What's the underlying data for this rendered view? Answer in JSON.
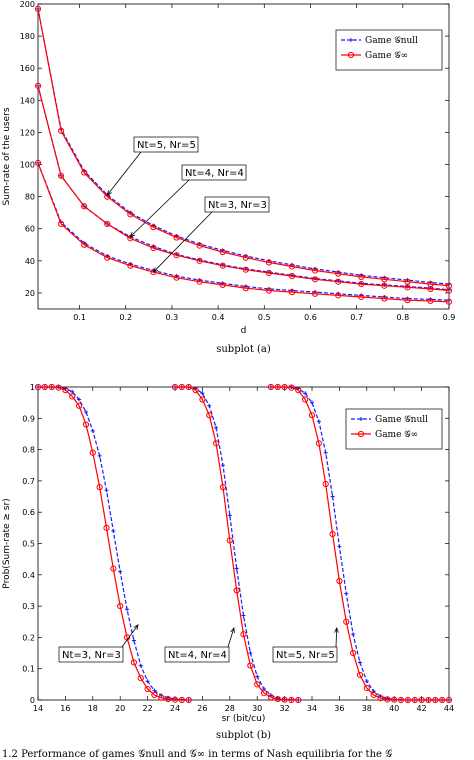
{
  "chart_data": [
    {
      "type": "line",
      "caption": "subplot (a)",
      "xlabel": "d",
      "ylabel": "Sum-rate of the users",
      "xlim": [
        0.01,
        0.9
      ],
      "ylim": [
        10,
        200
      ],
      "xticks": [
        "0.1",
        "0.2",
        "0.3",
        "0.4",
        "0.5",
        "0.6",
        "0.7",
        "0.8",
        "0.9"
      ],
      "yticks": [
        "20",
        "40",
        "60",
        "80",
        "100",
        "120",
        "140",
        "160",
        "180",
        "200"
      ],
      "grid": false,
      "legend_position": "top-right",
      "legend": [
        "Game 𝒢null",
        "Game 𝒢∞"
      ],
      "x": [
        0.01,
        0.06,
        0.11,
        0.16,
        0.21,
        0.26,
        0.31,
        0.36,
        0.41,
        0.46,
        0.51,
        0.56,
        0.61,
        0.66,
        0.71,
        0.76,
        0.81,
        0.86,
        0.9
      ],
      "series": [
        {
          "group": "Nt=5, Nr=5",
          "name": "Game 𝒢null",
          "values": [
            197,
            122,
            96,
            81,
            70,
            62,
            55.5,
            50.5,
            46.5,
            43,
            40,
            37.5,
            35,
            33,
            31,
            29.5,
            28,
            26.5,
            25.5
          ]
        },
        {
          "group": "Nt=5, Nr=5",
          "name": "Game 𝒢∞",
          "values": [
            197,
            121,
            95,
            80,
            69,
            61,
            54.5,
            49.5,
            45.5,
            42,
            39,
            36.5,
            34,
            32,
            30,
            28.5,
            27,
            25.5,
            24.5
          ]
        },
        {
          "group": "Nt=4, Nr=4",
          "name": "Game 𝒢null",
          "values": [
            149,
            93,
            74,
            63,
            55,
            49,
            44,
            40.5,
            37.5,
            35,
            33,
            31,
            29,
            27.5,
            26,
            25,
            24,
            23,
            22
          ]
        },
        {
          "group": "Nt=4, Nr=4",
          "name": "Game 𝒢∞",
          "values": [
            149,
            93,
            74,
            63,
            54,
            48,
            43.5,
            40,
            37,
            34.5,
            32.5,
            30.5,
            28.5,
            27,
            25.5,
            24.5,
            23.5,
            22.5,
            21.5
          ]
        },
        {
          "group": "Nt=3, Nr=3",
          "name": "Game 𝒢null",
          "values": [
            101,
            64,
            51,
            43,
            38,
            34,
            30.5,
            28,
            26,
            24,
            22.5,
            21.5,
            20.5,
            19.5,
            18.5,
            17.5,
            16.5,
            16,
            15.5
          ]
        },
        {
          "group": "Nt=3, Nr=3",
          "name": "Game 𝒢∞",
          "values": [
            101,
            63,
            50,
            42,
            37,
            33,
            29.5,
            27,
            25,
            23,
            21.5,
            20.5,
            19.5,
            18.5,
            17.5,
            16.5,
            15.5,
            15,
            14.5
          ]
        }
      ],
      "annotations": [
        {
          "text": "Nt=5, Nr=5",
          "points_to": [
            0.16,
            81
          ]
        },
        {
          "text": "Nt=4, Nr=4",
          "points_to": [
            0.21,
            55
          ]
        },
        {
          "text": "Nt=3, Nr=3",
          "points_to": [
            0.26,
            33
          ]
        }
      ],
      "colors": {
        "Game 𝒢null": "#1a1aff",
        "Game 𝒢∞": "#ff0000"
      }
    },
    {
      "type": "line",
      "caption": "subplot (b)",
      "xlabel": "sr (bit/cu)",
      "ylabel": "Prob(Sum-rate ≥ sr)",
      "xlim": [
        14,
        44
      ],
      "ylim": [
        0,
        1
      ],
      "xticks": [
        "14",
        "16",
        "18",
        "20",
        "22",
        "24",
        "26",
        "28",
        "30",
        "32",
        "34",
        "36",
        "38",
        "40",
        "42",
        "44"
      ],
      "yticks": [
        "0",
        "0.1",
        "0.2",
        "0.3",
        "0.4",
        "0.5",
        "0.6",
        "0.7",
        "0.8",
        "0.9",
        "1"
      ],
      "grid": false,
      "legend_position": "top-right",
      "legend": [
        "Game 𝒢null",
        "Game 𝒢∞"
      ],
      "series": [
        {
          "group": "Nt=3, Nr=3",
          "name": "Game 𝒢null",
          "x": [
            14,
            14.5,
            15,
            15.5,
            16,
            16.5,
            17,
            17.5,
            18,
            18.5,
            19,
            19.5,
            20,
            20.5,
            21,
            21.5,
            22,
            22.5,
            23,
            23.5,
            24,
            24.5,
            25
          ],
          "values": [
            1,
            1,
            1,
            1,
            0.995,
            0.985,
            0.96,
            0.92,
            0.86,
            0.78,
            0.67,
            0.54,
            0.41,
            0.29,
            0.19,
            0.11,
            0.06,
            0.03,
            0.015,
            0.007,
            0.003,
            0.001,
            0
          ]
        },
        {
          "group": "Nt=3, Nr=3",
          "name": "Game 𝒢∞",
          "x": [
            14,
            14.5,
            15,
            15.5,
            16,
            16.5,
            17,
            17.5,
            18,
            18.5,
            19,
            19.5,
            20,
            20.5,
            21,
            21.5,
            22,
            22.5,
            23,
            23.5,
            24,
            24.5,
            25
          ],
          "values": [
            1,
            1,
            1,
            0.998,
            0.99,
            0.97,
            0.94,
            0.88,
            0.79,
            0.68,
            0.55,
            0.42,
            0.3,
            0.2,
            0.12,
            0.07,
            0.035,
            0.016,
            0.007,
            0.003,
            0.001,
            0,
            0
          ]
        },
        {
          "group": "Nt=4, Nr=4",
          "name": "Game 𝒢null",
          "x": [
            24,
            24.5,
            25,
            25.5,
            26,
            26.5,
            27,
            27.5,
            28,
            28.5,
            29,
            29.5,
            30,
            30.5,
            31,
            31.5,
            32,
            32.5,
            33
          ],
          "values": [
            1,
            1,
            1,
            0.995,
            0.98,
            0.94,
            0.87,
            0.75,
            0.59,
            0.42,
            0.27,
            0.15,
            0.075,
            0.035,
            0.015,
            0.006,
            0.002,
            0.001,
            0
          ]
        },
        {
          "group": "Nt=4, Nr=4",
          "name": "Game 𝒢∞",
          "x": [
            24,
            24.5,
            25,
            25.5,
            26,
            26.5,
            27,
            27.5,
            28,
            28.5,
            29,
            29.5,
            30,
            30.5,
            31,
            31.5,
            32,
            32.5,
            33
          ],
          "values": [
            1,
            1,
            1,
            0.99,
            0.96,
            0.91,
            0.82,
            0.68,
            0.51,
            0.35,
            0.21,
            0.11,
            0.05,
            0.022,
            0.009,
            0.003,
            0.001,
            0,
            0
          ]
        },
        {
          "group": "Nt=5, Nr=5",
          "name": "Game 𝒢null",
          "x": [
            31,
            31.5,
            32,
            32.5,
            33,
            33.5,
            34,
            34.5,
            35,
            35.5,
            36,
            36.5,
            37,
            37.5,
            38,
            38.5,
            39,
            39.5,
            40,
            40.5,
            41,
            41.5,
            42,
            42.5,
            43,
            43.5,
            44
          ],
          "values": [
            1,
            1,
            1,
            1,
            0.995,
            0.98,
            0.95,
            0.89,
            0.79,
            0.65,
            0.49,
            0.34,
            0.21,
            0.12,
            0.06,
            0.028,
            0.012,
            0.005,
            0.002,
            0.001,
            0,
            0,
            0,
            0,
            0,
            0,
            0
          ]
        },
        {
          "group": "Nt=5, Nr=5",
          "name": "Game 𝒢∞",
          "x": [
            31,
            31.5,
            32,
            32.5,
            33,
            33.5,
            34,
            34.5,
            35,
            35.5,
            36,
            36.5,
            37,
            37.5,
            38,
            38.5,
            39,
            39.5,
            40,
            40.5,
            41,
            41.5,
            42,
            42.5,
            43,
            43.5,
            44
          ],
          "values": [
            1,
            1,
            1,
            0.998,
            0.99,
            0.96,
            0.91,
            0.82,
            0.69,
            0.53,
            0.38,
            0.25,
            0.15,
            0.08,
            0.038,
            0.016,
            0.006,
            0.002,
            0.001,
            0,
            0,
            0,
            0,
            0,
            0,
            0,
            0
          ]
        }
      ],
      "annotations": [
        {
          "text": "Nt=3, Nr=3",
          "points_to": [
            21.3,
            0.24
          ]
        },
        {
          "text": "Nt=4, Nr=4",
          "points_to": [
            28.3,
            0.23
          ]
        },
        {
          "text": "Nt=5, Nr=5",
          "points_to": [
            35.8,
            0.23
          ]
        }
      ],
      "colors": {
        "Game 𝒢null": "#1a1aff",
        "Game 𝒢∞": "#ff0000"
      }
    }
  ],
  "footer_fragment": "1.2 Performance of games 𝒢null and 𝒢∞ in terms of Nash equilibria for the 𝒢"
}
